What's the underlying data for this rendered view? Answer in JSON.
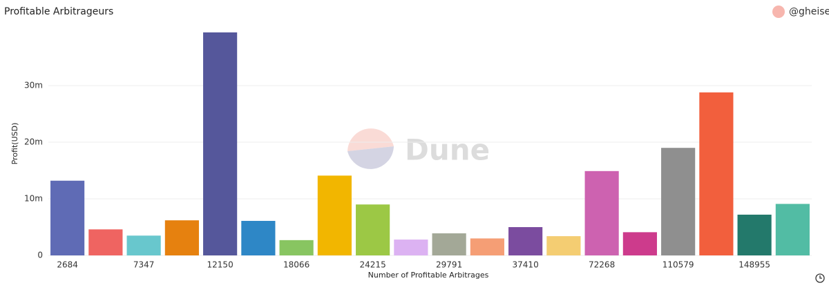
{
  "chart_data": {
    "type": "bar",
    "title": "Profitable Arbitrageurs",
    "author": "@gheise",
    "watermark": "Dune",
    "x_label": "Number of Profitable Arbitrages",
    "y_label": "Profit(USD)",
    "categories": [
      "2684",
      null,
      "7347",
      null,
      "12150",
      null,
      "18066",
      null,
      "24215",
      null,
      "29791",
      null,
      "37410",
      null,
      "72268",
      null,
      "110579",
      null,
      "148955",
      null
    ],
    "values": [
      13.2,
      4.6,
      3.5,
      6.2,
      39.4,
      6.1,
      2.7,
      14.1,
      9.0,
      2.8,
      3.9,
      3.0,
      5.0,
      3.4,
      14.9,
      4.1,
      19.0,
      28.8,
      7.2,
      9.1
    ],
    "colors": [
      "#5f6bb5",
      "#ef6461",
      "#68c7cd",
      "#e6810f",
      "#55579b",
      "#2e87c6",
      "#88c561",
      "#f2b600",
      "#9cc845",
      "#dcb2f2",
      "#a3a897",
      "#f59e75",
      "#7b4c9f",
      "#f4cd72",
      "#cd62b0",
      "#cd3b8c",
      "#8f8f8f",
      "#f25f3d",
      "#23796b",
      "#52bca4"
    ],
    "ylim": [
      0,
      40
    ],
    "yticks": [
      0,
      {
        "value": 10,
        "label": "10m"
      },
      {
        "value": 20,
        "label": "20m"
      },
      {
        "value": 30,
        "label": "30m"
      }
    ],
    "grid": true
  }
}
